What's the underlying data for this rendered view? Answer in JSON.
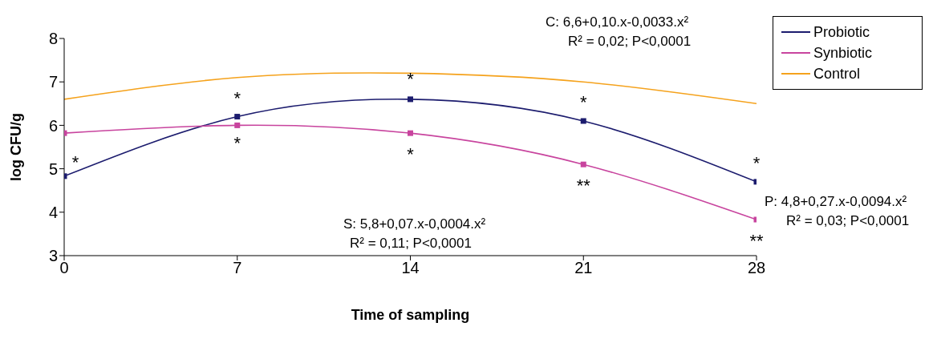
{
  "chart_data": {
    "type": "line",
    "xlabel": "Time of sampling",
    "ylabel": "log CFU/g",
    "x": [
      0,
      7,
      14,
      21,
      28
    ],
    "xlim": [
      0,
      28
    ],
    "xticks": [
      0,
      7,
      14,
      21,
      28
    ],
    "ylim": [
      3,
      8
    ],
    "yticks": [
      3,
      4,
      5,
      6,
      7,
      8
    ],
    "legend": "top right",
    "line_style": "solid",
    "series": [
      {
        "name": "Probiotic",
        "color": "#1c1c6e",
        "values": [
          4.83,
          6.2,
          6.6,
          6.1,
          4.7
        ],
        "marker": "square"
      },
      {
        "name": "Synbiotic",
        "color": "#c8449e",
        "values": [
          5.82,
          6.0,
          5.82,
          5.1,
          3.83
        ],
        "marker": "square"
      },
      {
        "name": "Control",
        "color": "#f5a21c",
        "values": [
          6.6,
          7.1,
          7.2,
          7.0,
          6.5
        ],
        "marker": "none"
      }
    ],
    "annotations": [
      "C: 6,6+0,10.x-0,0033.x²",
      "R² = 0,02; P<0,0001",
      "S: 5,8+0,07.x-0,0004.x²",
      "R² = 0,11; P<0,0001",
      "P: 4,8+0,27.x-0,0094.x²",
      "R² = 0,03; P<0,0001",
      {
        "text": "*",
        "x": 0,
        "y": 4.83
      },
      {
        "text": "*",
        "x": 7,
        "y": 6.2
      },
      {
        "text": "*",
        "x": 7,
        "y": 6.0
      },
      {
        "text": "*",
        "x": 14,
        "y": 6.6
      },
      {
        "text": "*",
        "x": 14,
        "y": 5.82
      },
      {
        "text": "*",
        "x": 21,
        "y": 6.1
      },
      {
        "text": "**",
        "x": 21,
        "y": 5.1
      },
      {
        "text": "*",
        "x": 28,
        "y": 4.7
      },
      {
        "text": "**",
        "x": 28,
        "y": 3.83
      }
    ]
  }
}
